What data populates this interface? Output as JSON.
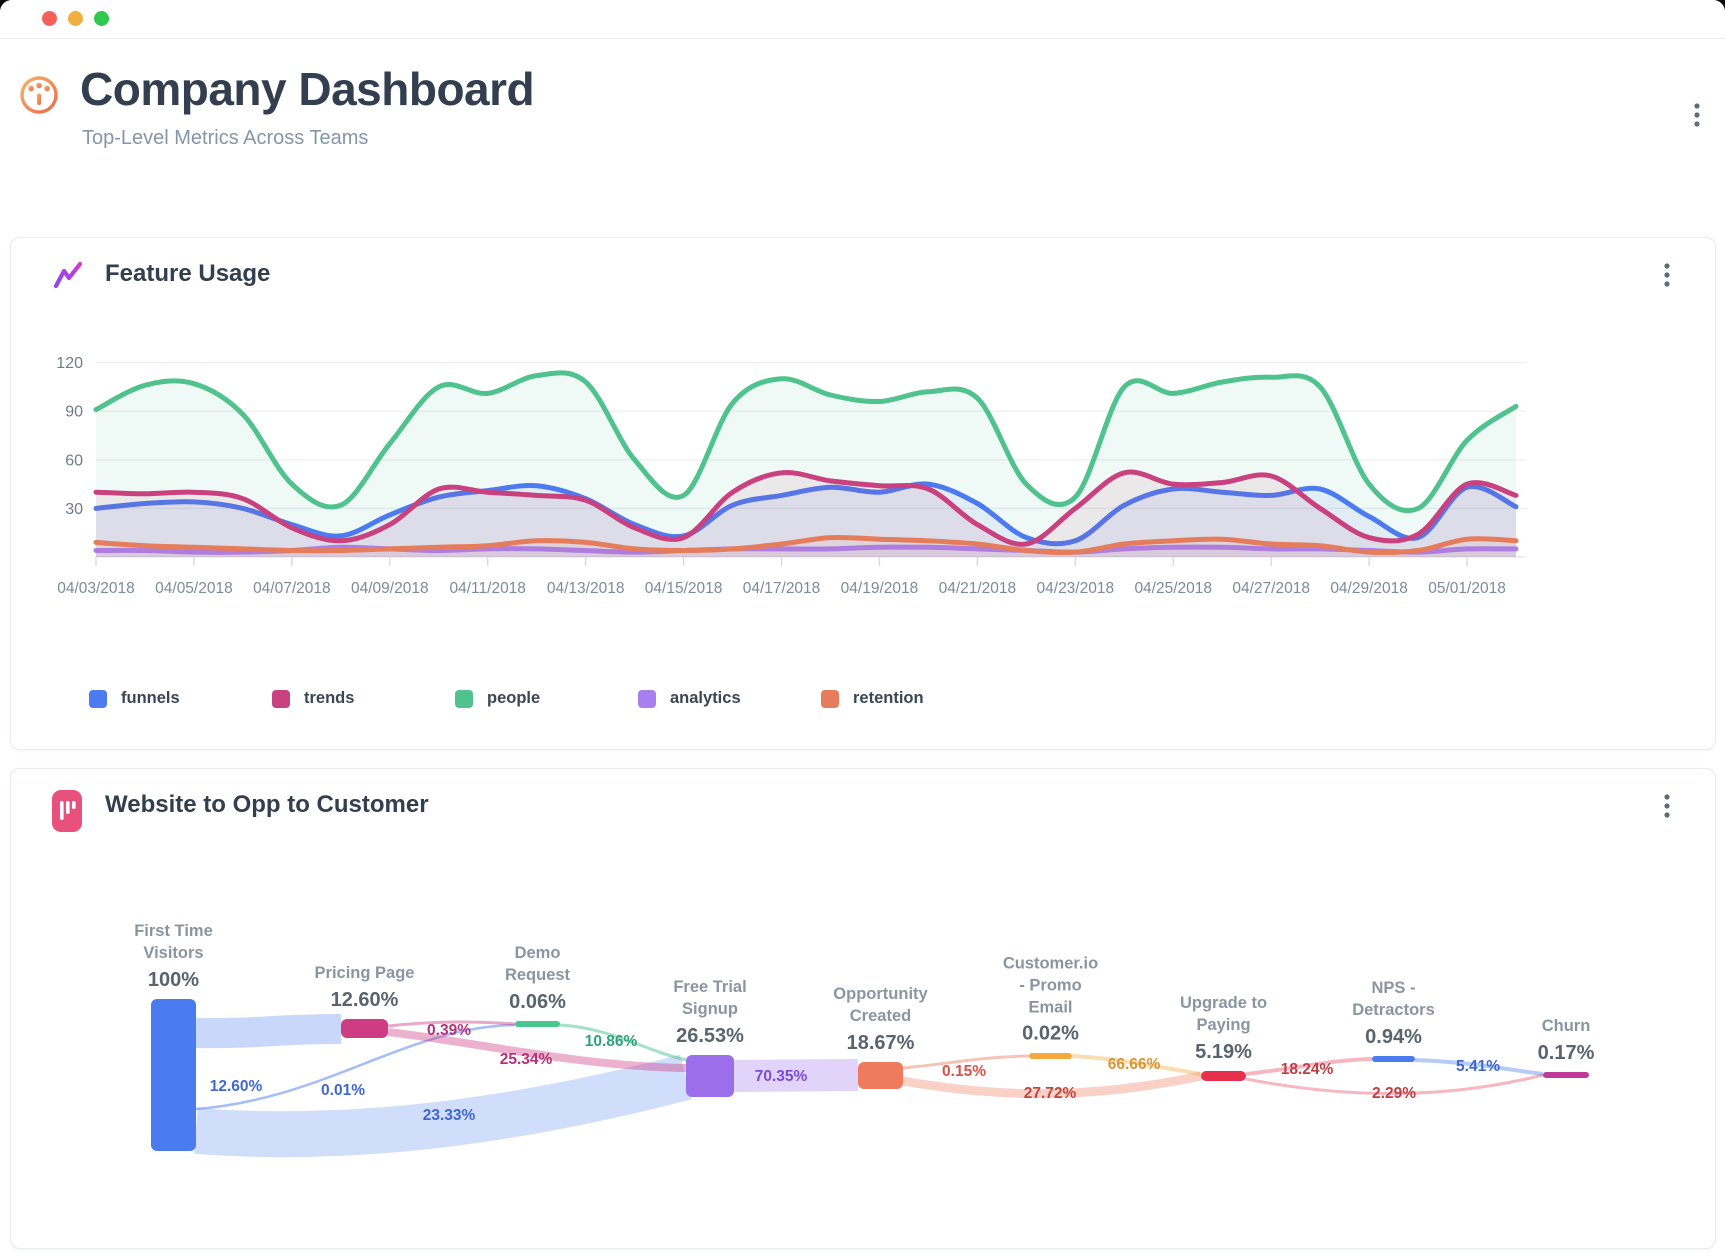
{
  "window_controls": {
    "close_color": "#f4605a",
    "minimize_color": "#f0b03f",
    "zoom_color": "#30c84e"
  },
  "header": {
    "icon": "gauge-icon",
    "title": "Company Dashboard",
    "subtitle": "Top-Level Metrics Across Teams",
    "menu_icon": "kebab-menu-icon"
  },
  "feature_usage_card": {
    "icon": "trend-line-icon",
    "title": "Feature Usage",
    "menu_icon": "kebab-menu-icon",
    "chart_data": {
      "type": "area",
      "title": "Feature Usage",
      "x_tick_labels": [
        "04/03/2018",
        "04/05/2018",
        "04/07/2018",
        "04/09/2018",
        "04/11/2018",
        "04/13/2018",
        "04/15/2018",
        "04/17/2018",
        "04/19/2018",
        "04/21/2018",
        "04/23/2018",
        "04/25/2018",
        "04/27/2018",
        "04/29/2018",
        "05/01/2018"
      ],
      "yticks": [
        30,
        60,
        90,
        120
      ],
      "ylim": [
        0,
        120
      ],
      "grid": true,
      "legend_position": "bottom",
      "series": [
        {
          "name": "funnels",
          "color": "#4c7bf0",
          "values": [
            30,
            33,
            34,
            30,
            20,
            13,
            26,
            37,
            41,
            44,
            36,
            20,
            13,
            32,
            38,
            43,
            40,
            45,
            33,
            12,
            10,
            32,
            42,
            40,
            38,
            42,
            25,
            12,
            43,
            31
          ]
        },
        {
          "name": "trends",
          "color": "#c9417f",
          "values": [
            40,
            39,
            40,
            36,
            18,
            10,
            20,
            42,
            40,
            38,
            35,
            18,
            12,
            40,
            52,
            47,
            44,
            42,
            20,
            8,
            30,
            52,
            45,
            46,
            50,
            30,
            12,
            14,
            45,
            38
          ]
        },
        {
          "name": "people",
          "color": "#4fc28e",
          "values": [
            91,
            106,
            107,
            88,
            45,
            32,
            70,
            105,
            101,
            112,
            108,
            60,
            38,
            95,
            110,
            100,
            96,
            102,
            98,
            45,
            37,
            105,
            101,
            108,
            111,
            105,
            45,
            30,
            72,
            93
          ]
        },
        {
          "name": "analytics",
          "color": "#a97eed",
          "values": [
            4,
            4,
            3,
            3,
            4,
            6,
            5,
            4,
            5,
            5,
            4,
            3,
            4,
            5,
            5,
            5,
            6,
            6,
            5,
            4,
            3,
            5,
            6,
            6,
            5,
            5,
            4,
            3,
            5,
            5
          ]
        },
        {
          "name": "retention",
          "color": "#e57c5b",
          "values": [
            9,
            7,
            6,
            5,
            4,
            4,
            5,
            6,
            7,
            10,
            9,
            5,
            4,
            5,
            8,
            12,
            11,
            10,
            8,
            4,
            3,
            8,
            10,
            11,
            8,
            7,
            3,
            4,
            11,
            10
          ]
        }
      ]
    }
  },
  "funnel_card": {
    "icon": "funnel-bars-icon",
    "title": "Website to Opp to Customer",
    "menu_icon": "kebab-menu-icon",
    "chart_data": {
      "type": "sankey",
      "nodes": [
        {
          "id": "first_time_visitors",
          "label": "First Time Visitors",
          "label_lines": [
            "First Time",
            "Visitors"
          ],
          "percent": "100%",
          "color": "#4a7cf0"
        },
        {
          "id": "pricing_page",
          "label": "Pricing Page",
          "label_lines": [
            "Pricing Page"
          ],
          "percent": "12.60%",
          "color": "#ce3d84"
        },
        {
          "id": "demo_request",
          "label": "Demo Request",
          "label_lines": [
            "Demo",
            "Request"
          ],
          "percent": "0.06%",
          "color": "#47c68e"
        },
        {
          "id": "free_trial_signup",
          "label": "Free Trial Signup",
          "label_lines": [
            "Free Trial",
            "Signup"
          ],
          "percent": "26.53%",
          "color": "#9d6eea"
        },
        {
          "id": "opportunity_created",
          "label": "Opportunity Created",
          "label_lines": [
            "Opportunity",
            "Created"
          ],
          "percent": "18.67%",
          "color": "#ef7b5f"
        },
        {
          "id": "customerio_promo_email",
          "label": "Customer.io - Promo Email",
          "label_lines": [
            "Customer.io",
            "- Promo",
            "Email"
          ],
          "percent": "0.02%",
          "color": "#f3a93c"
        },
        {
          "id": "upgrade_to_paying",
          "label": "Upgrade to Paying",
          "label_lines": [
            "Upgrade to",
            "Paying"
          ],
          "percent": "5.19%",
          "color": "#e6304e"
        },
        {
          "id": "nps_detractors",
          "label": "NPS - Detractors",
          "label_lines": [
            "NPS -",
            "Detractors"
          ],
          "percent": "0.94%",
          "color": "#4a7cf0"
        },
        {
          "id": "churn",
          "label": "Churn",
          "label_lines": [
            "Churn"
          ],
          "percent": "0.17%",
          "color": "#c0399a"
        }
      ],
      "links": [
        {
          "source": "first_time_visitors",
          "target": "pricing_page",
          "label": "12.60%",
          "label_color": "#3e68cf"
        },
        {
          "source": "first_time_visitors",
          "target": "demo_request",
          "label": "0.01%",
          "label_color": "#3e68cf"
        },
        {
          "source": "first_time_visitors",
          "target": "free_trial_signup",
          "label": "23.33%",
          "label_color": "#3e68cf"
        },
        {
          "source": "pricing_page",
          "target": "demo_request",
          "label": "0.39%",
          "label_color": "#b53278"
        },
        {
          "source": "pricing_page",
          "target": "free_trial_signup",
          "label": "25.34%",
          "label_color": "#b53278"
        },
        {
          "source": "demo_request",
          "target": "free_trial_signup",
          "label": "10.86%",
          "label_color": "#2fa377"
        },
        {
          "source": "free_trial_signup",
          "target": "opportunity_created",
          "label": "70.35%",
          "label_color": "#7c4bd6"
        },
        {
          "source": "opportunity_created",
          "target": "customerio_promo_email",
          "label": "0.15%",
          "label_color": "#d8504a"
        },
        {
          "source": "opportunity_created",
          "target": "upgrade_to_paying",
          "label": "27.72%",
          "label_color": "#c2453c"
        },
        {
          "source": "customerio_promo_email",
          "target": "upgrade_to_paying",
          "label": "66.66%",
          "label_color": "#d9952f"
        },
        {
          "source": "upgrade_to_paying",
          "target": "nps_detractors",
          "label": "18.24%",
          "label_color": "#bc3f43"
        },
        {
          "source": "upgrade_to_paying",
          "target": "churn",
          "label": "2.29%",
          "label_color": "#bc3f43"
        },
        {
          "source": "nps_detractors",
          "target": "churn",
          "label": "5.41%",
          "label_color": "#3e68cf"
        }
      ]
    }
  }
}
